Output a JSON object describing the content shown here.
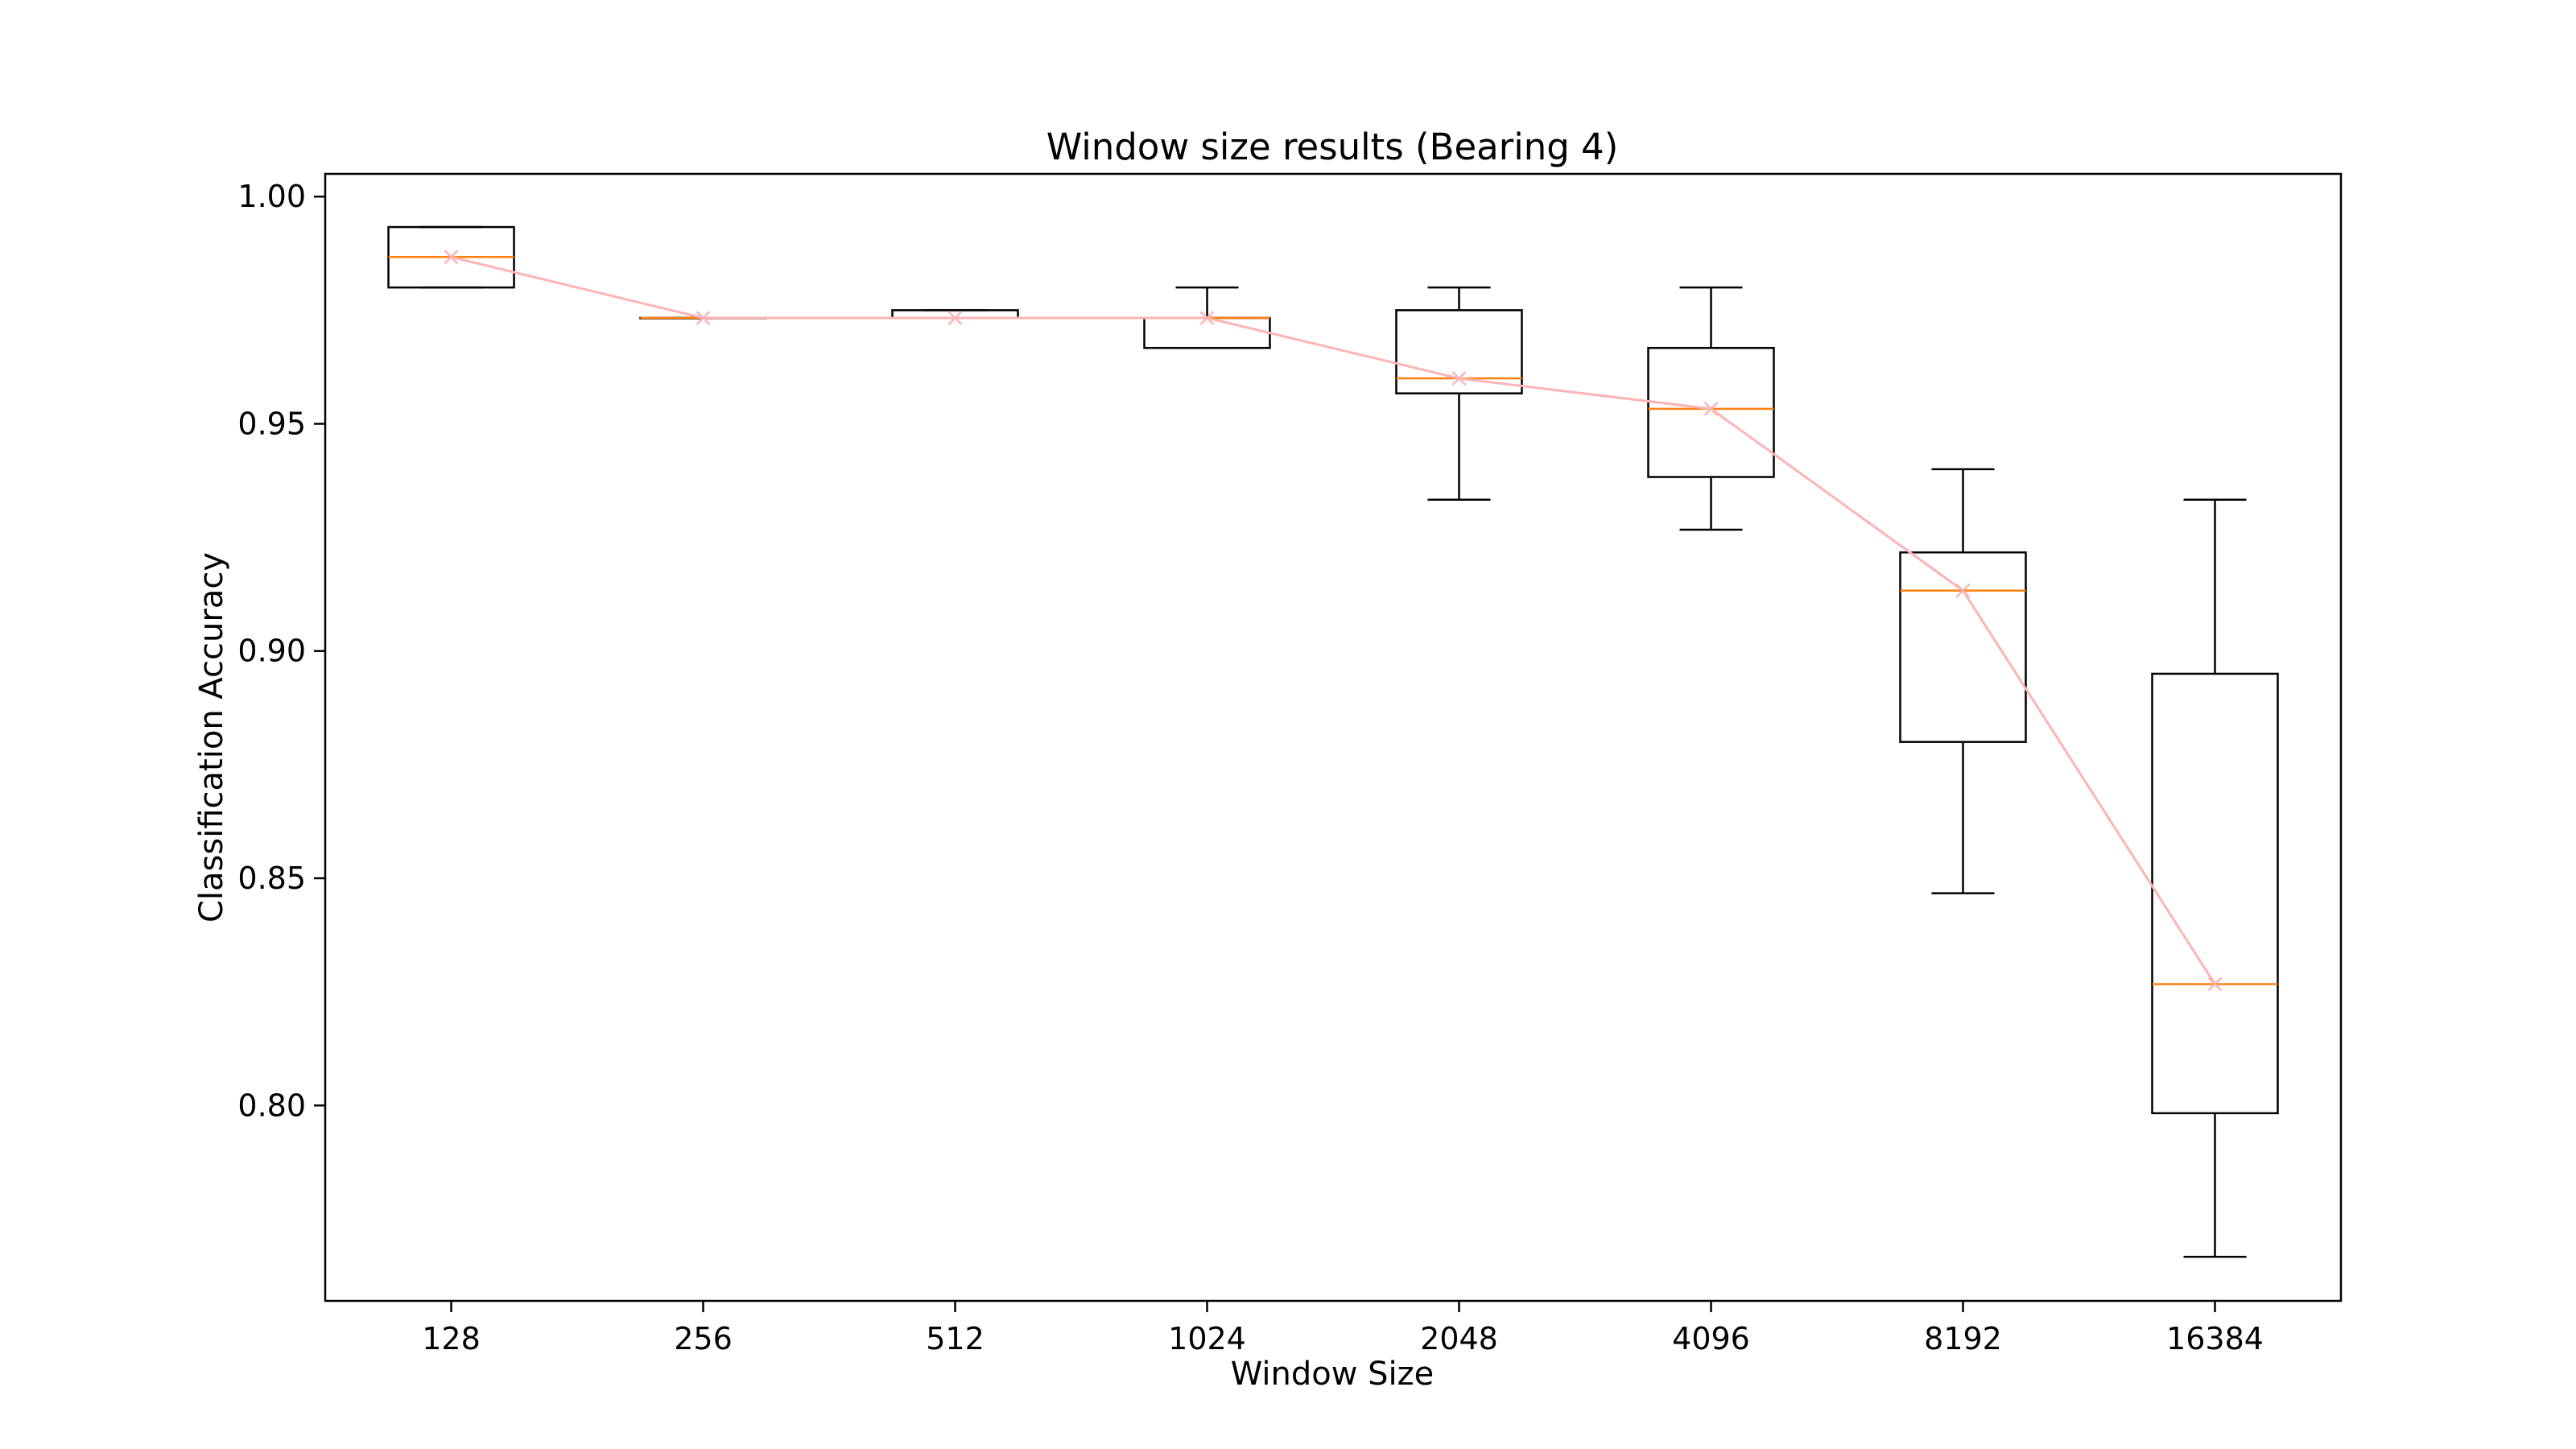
{
  "chart_data": {
    "type": "box",
    "title": "Window size results (Bearing 4)",
    "xlabel": "Window Size",
    "ylabel": "Classification Accuracy",
    "ylim": [
      0.757,
      1.005
    ],
    "yticks": [
      0.8,
      0.85,
      0.9,
      0.95,
      1.0
    ],
    "ytick_labels": [
      "0.80",
      "0.85",
      "0.90",
      "0.95",
      "1.00"
    ],
    "categories": [
      "128",
      "256",
      "512",
      "1024",
      "2048",
      "4096",
      "8192",
      "16384"
    ],
    "boxes": [
      {
        "whisker_low": 0.98,
        "q1": 0.98,
        "median": 0.9867,
        "q3": 0.9933,
        "whisker_high": 0.9933
      },
      {
        "whisker_low": 0.9733,
        "q1": 0.9733,
        "median": 0.9733,
        "q3": 0.9733,
        "whisker_high": 0.9733
      },
      {
        "whisker_low": 0.9733,
        "q1": 0.9733,
        "median": 0.9733,
        "q3": 0.975,
        "whisker_high": 0.975
      },
      {
        "whisker_low": 0.9667,
        "q1": 0.9667,
        "median": 0.9733,
        "q3": 0.9733,
        "whisker_high": 0.98
      },
      {
        "whisker_low": 0.9333,
        "q1": 0.9567,
        "median": 0.96,
        "q3": 0.975,
        "whisker_high": 0.98
      },
      {
        "whisker_low": 0.9267,
        "q1": 0.9383,
        "median": 0.9533,
        "q3": 0.9667,
        "whisker_high": 0.98
      },
      {
        "whisker_low": 0.8467,
        "q1": 0.88,
        "median": 0.9133,
        "q3": 0.9217,
        "whisker_high": 0.94
      },
      {
        "whisker_low": 0.7667,
        "q1": 0.7983,
        "median": 0.8267,
        "q3": 0.895,
        "whisker_high": 0.9333
      }
    ],
    "trend_line": [
      0.9867,
      0.9733,
      0.9733,
      0.9733,
      0.96,
      0.9533,
      0.9133,
      0.8267
    ],
    "colors": {
      "box": "#000000",
      "median": "#ff7f0e",
      "trend": "#ffb3b3"
    },
    "grid": false,
    "legend": "none"
  }
}
